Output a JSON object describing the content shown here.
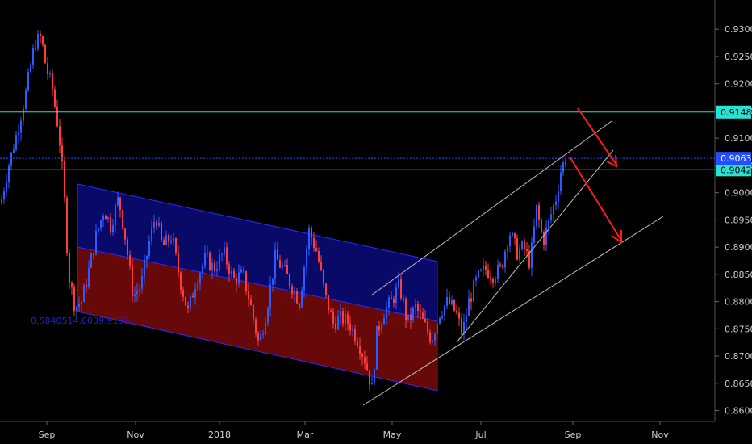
{
  "chart_data": {
    "type": "candlestick",
    "title": "",
    "xlabel": "",
    "ylabel": "",
    "ylim": [
      0.858,
      0.933
    ],
    "y_ticks": [
      "0.9300",
      "0.9250",
      "0.9200",
      "0.9150",
      "0.9100",
      "0.9050",
      "0.9000",
      "0.8950",
      "0.8900",
      "0.8850",
      "0.8800",
      "0.8750",
      "0.8700",
      "0.8650",
      "0.8600"
    ],
    "x_ticks": [
      "Sep",
      "Nov",
      "2018",
      "Mar",
      "May",
      "Jul",
      "Sep",
      "Nov"
    ],
    "grid": false,
    "colors": {
      "up": "#2e5bff",
      "down": "#ff3b3b",
      "horizontal_line": "#27e3d5",
      "channel_upper_fill": "#0a0a6e",
      "channel_lower_fill": "#6e0a0a",
      "channel_edge": "#2a2aff",
      "trendline": "#bdbdbd",
      "arrow": "#ff1a1a",
      "current_price": "#1f4fff"
    },
    "horizontal_lines": [
      {
        "price": "0.9148",
        "style": "solid"
      },
      {
        "price": "0.9042",
        "style": "solid"
      }
    ],
    "current_price": "0.9063",
    "channel_label": "0.5840514.0039.9135",
    "price_path": [
      [
        0,
        0.898
      ],
      [
        8,
        0.904
      ],
      [
        20,
        0.911
      ],
      [
        32,
        0.919
      ],
      [
        42,
        0.9275
      ],
      [
        50,
        0.9285
      ],
      [
        56,
        0.923
      ],
      [
        64,
        0.919
      ],
      [
        72,
        0.911
      ],
      [
        78,
        0.901
      ],
      [
        84,
        0.885
      ],
      [
        92,
        0.879
      ],
      [
        100,
        0.88
      ],
      [
        108,
        0.885
      ],
      [
        118,
        0.892
      ],
      [
        128,
        0.897
      ],
      [
        136,
        0.894
      ],
      [
        146,
        0.899
      ],
      [
        154,
        0.892
      ],
      [
        164,
        0.881
      ],
      [
        174,
        0.883
      ],
      [
        184,
        0.891
      ],
      [
        192,
        0.896
      ],
      [
        200,
        0.89
      ],
      [
        212,
        0.892
      ],
      [
        222,
        0.884
      ],
      [
        232,
        0.878
      ],
      [
        242,
        0.884
      ],
      [
        254,
        0.888
      ],
      [
        264,
        0.886
      ],
      [
        276,
        0.889
      ],
      [
        288,
        0.884
      ],
      [
        300,
        0.885
      ],
      [
        310,
        0.879
      ],
      [
        320,
        0.872
      ],
      [
        330,
        0.879
      ],
      [
        340,
        0.888
      ],
      [
        350,
        0.886
      ],
      [
        360,
        0.883
      ],
      [
        370,
        0.88
      ],
      [
        382,
        0.893
      ],
      [
        392,
        0.889
      ],
      [
        402,
        0.881
      ],
      [
        412,
        0.876
      ],
      [
        422,
        0.877
      ],
      [
        432,
        0.876
      ],
      [
        442,
        0.873
      ],
      [
        452,
        0.869
      ],
      [
        460,
        0.864
      ],
      [
        466,
        0.874
      ],
      [
        474,
        0.878
      ],
      [
        484,
        0.88
      ],
      [
        494,
        0.883
      ],
      [
        504,
        0.876
      ],
      [
        514,
        0.879
      ],
      [
        524,
        0.876
      ],
      [
        534,
        0.873
      ],
      [
        544,
        0.878
      ],
      [
        554,
        0.88
      ],
      [
        564,
        0.878
      ],
      [
        572,
        0.874
      ],
      [
        580,
        0.88
      ],
      [
        590,
        0.884
      ],
      [
        600,
        0.886
      ],
      [
        610,
        0.885
      ],
      [
        620,
        0.886
      ],
      [
        630,
        0.893
      ],
      [
        640,
        0.889
      ],
      [
        648,
        0.89
      ],
      [
        656,
        0.887
      ],
      [
        664,
        0.897
      ],
      [
        672,
        0.891
      ],
      [
        680,
        0.895
      ],
      [
        688,
        0.899
      ],
      [
        694,
        0.904
      ],
      [
        700,
        0.9063
      ]
    ]
  }
}
